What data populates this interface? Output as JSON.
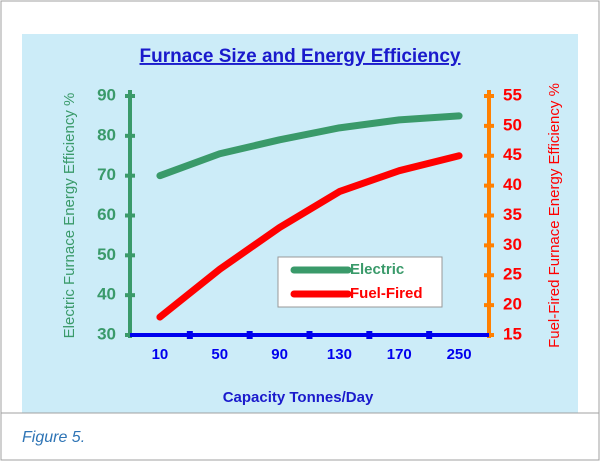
{
  "chart_data": {
    "type": "line",
    "title": "Furnace Size and Energy Efficiency",
    "xlabel": "Capacity Tonnes/Day",
    "ylabel": "Electric Furnace Energy Efficiency %",
    "y2label": "Fuel-Fired Furnace Energy Efficiency %",
    "caption": "Figure 5.",
    "categories": [
      "10",
      "50",
      "90",
      "130",
      "170",
      "250"
    ],
    "series": [
      {
        "name": "Electric",
        "color": "#3a9a6a",
        "values": [
          70,
          75.5,
          79,
          82,
          84,
          85
        ]
      },
      {
        "name": "Fuel-Fired",
        "color": "#ff0000",
        "axis": "y2",
        "values": [
          18,
          26,
          33,
          39,
          42.5,
          45
        ]
      }
    ],
    "ylim": [
      30,
      90
    ],
    "yticks": [
      30,
      40,
      50,
      60,
      70,
      80,
      90
    ],
    "y2lim": [
      15,
      55
    ],
    "y2ticks": [
      15,
      20,
      25,
      30,
      35,
      40,
      45,
      50,
      55
    ],
    "ycolor": "#3a9a6a",
    "y2color": "#ff8000",
    "y2labelcolor": "#ff0000",
    "xcolor": "#0000ee",
    "legend": "lower right"
  }
}
